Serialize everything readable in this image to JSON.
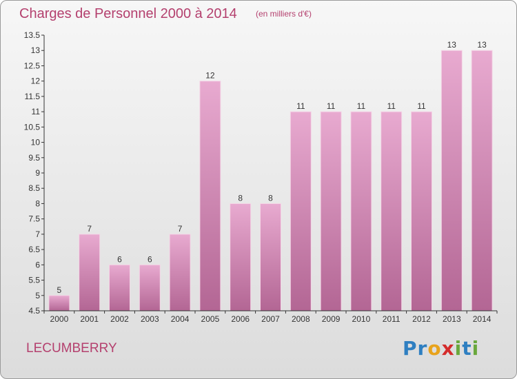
{
  "header": {
    "title": "Charges de Personnel 2000 à 2014",
    "subtitle": "(en milliers d'€)"
  },
  "footer": {
    "commune": "LECUMBERRY",
    "brand": "Proxiti",
    "brand_letters": [
      {
        "ch": "P",
        "color": "#2f7fc1"
      },
      {
        "ch": "r",
        "color": "#2f7fc1"
      },
      {
        "ch": "o",
        "color": "#e8a31c"
      },
      {
        "ch": "x",
        "color": "#d42c2c"
      },
      {
        "ch": "i",
        "color": "#6aa83c"
      },
      {
        "ch": "t",
        "color": "#2f7fc1"
      },
      {
        "ch": "i",
        "color": "#6aa83c"
      }
    ]
  },
  "colors": {
    "accent": "#b4406e",
    "bar_top": "#e8aad0",
    "bar_bottom": "#b36694"
  },
  "chart_data": {
    "type": "bar",
    "categories": [
      "2000",
      "2001",
      "2002",
      "2003",
      "2004",
      "2005",
      "2006",
      "2007",
      "2008",
      "2009",
      "2010",
      "2011",
      "2012",
      "2013",
      "2014"
    ],
    "values": [
      5,
      7,
      6,
      6,
      7,
      12,
      8,
      8,
      11,
      11,
      11,
      11,
      11,
      13,
      13
    ],
    "title": "Charges de Personnel 2000 à 2014",
    "ylim": [
      4.5,
      13.5
    ],
    "yticks": [
      "4.5",
      "5",
      "5.5",
      "6",
      "6.5",
      "7",
      "7.5",
      "8",
      "8.5",
      "9",
      "9.5",
      "10",
      "10.5",
      "11",
      "11.5",
      "12",
      "12.5",
      "13",
      "13.5"
    ],
    "grid": false,
    "legend": "none"
  }
}
